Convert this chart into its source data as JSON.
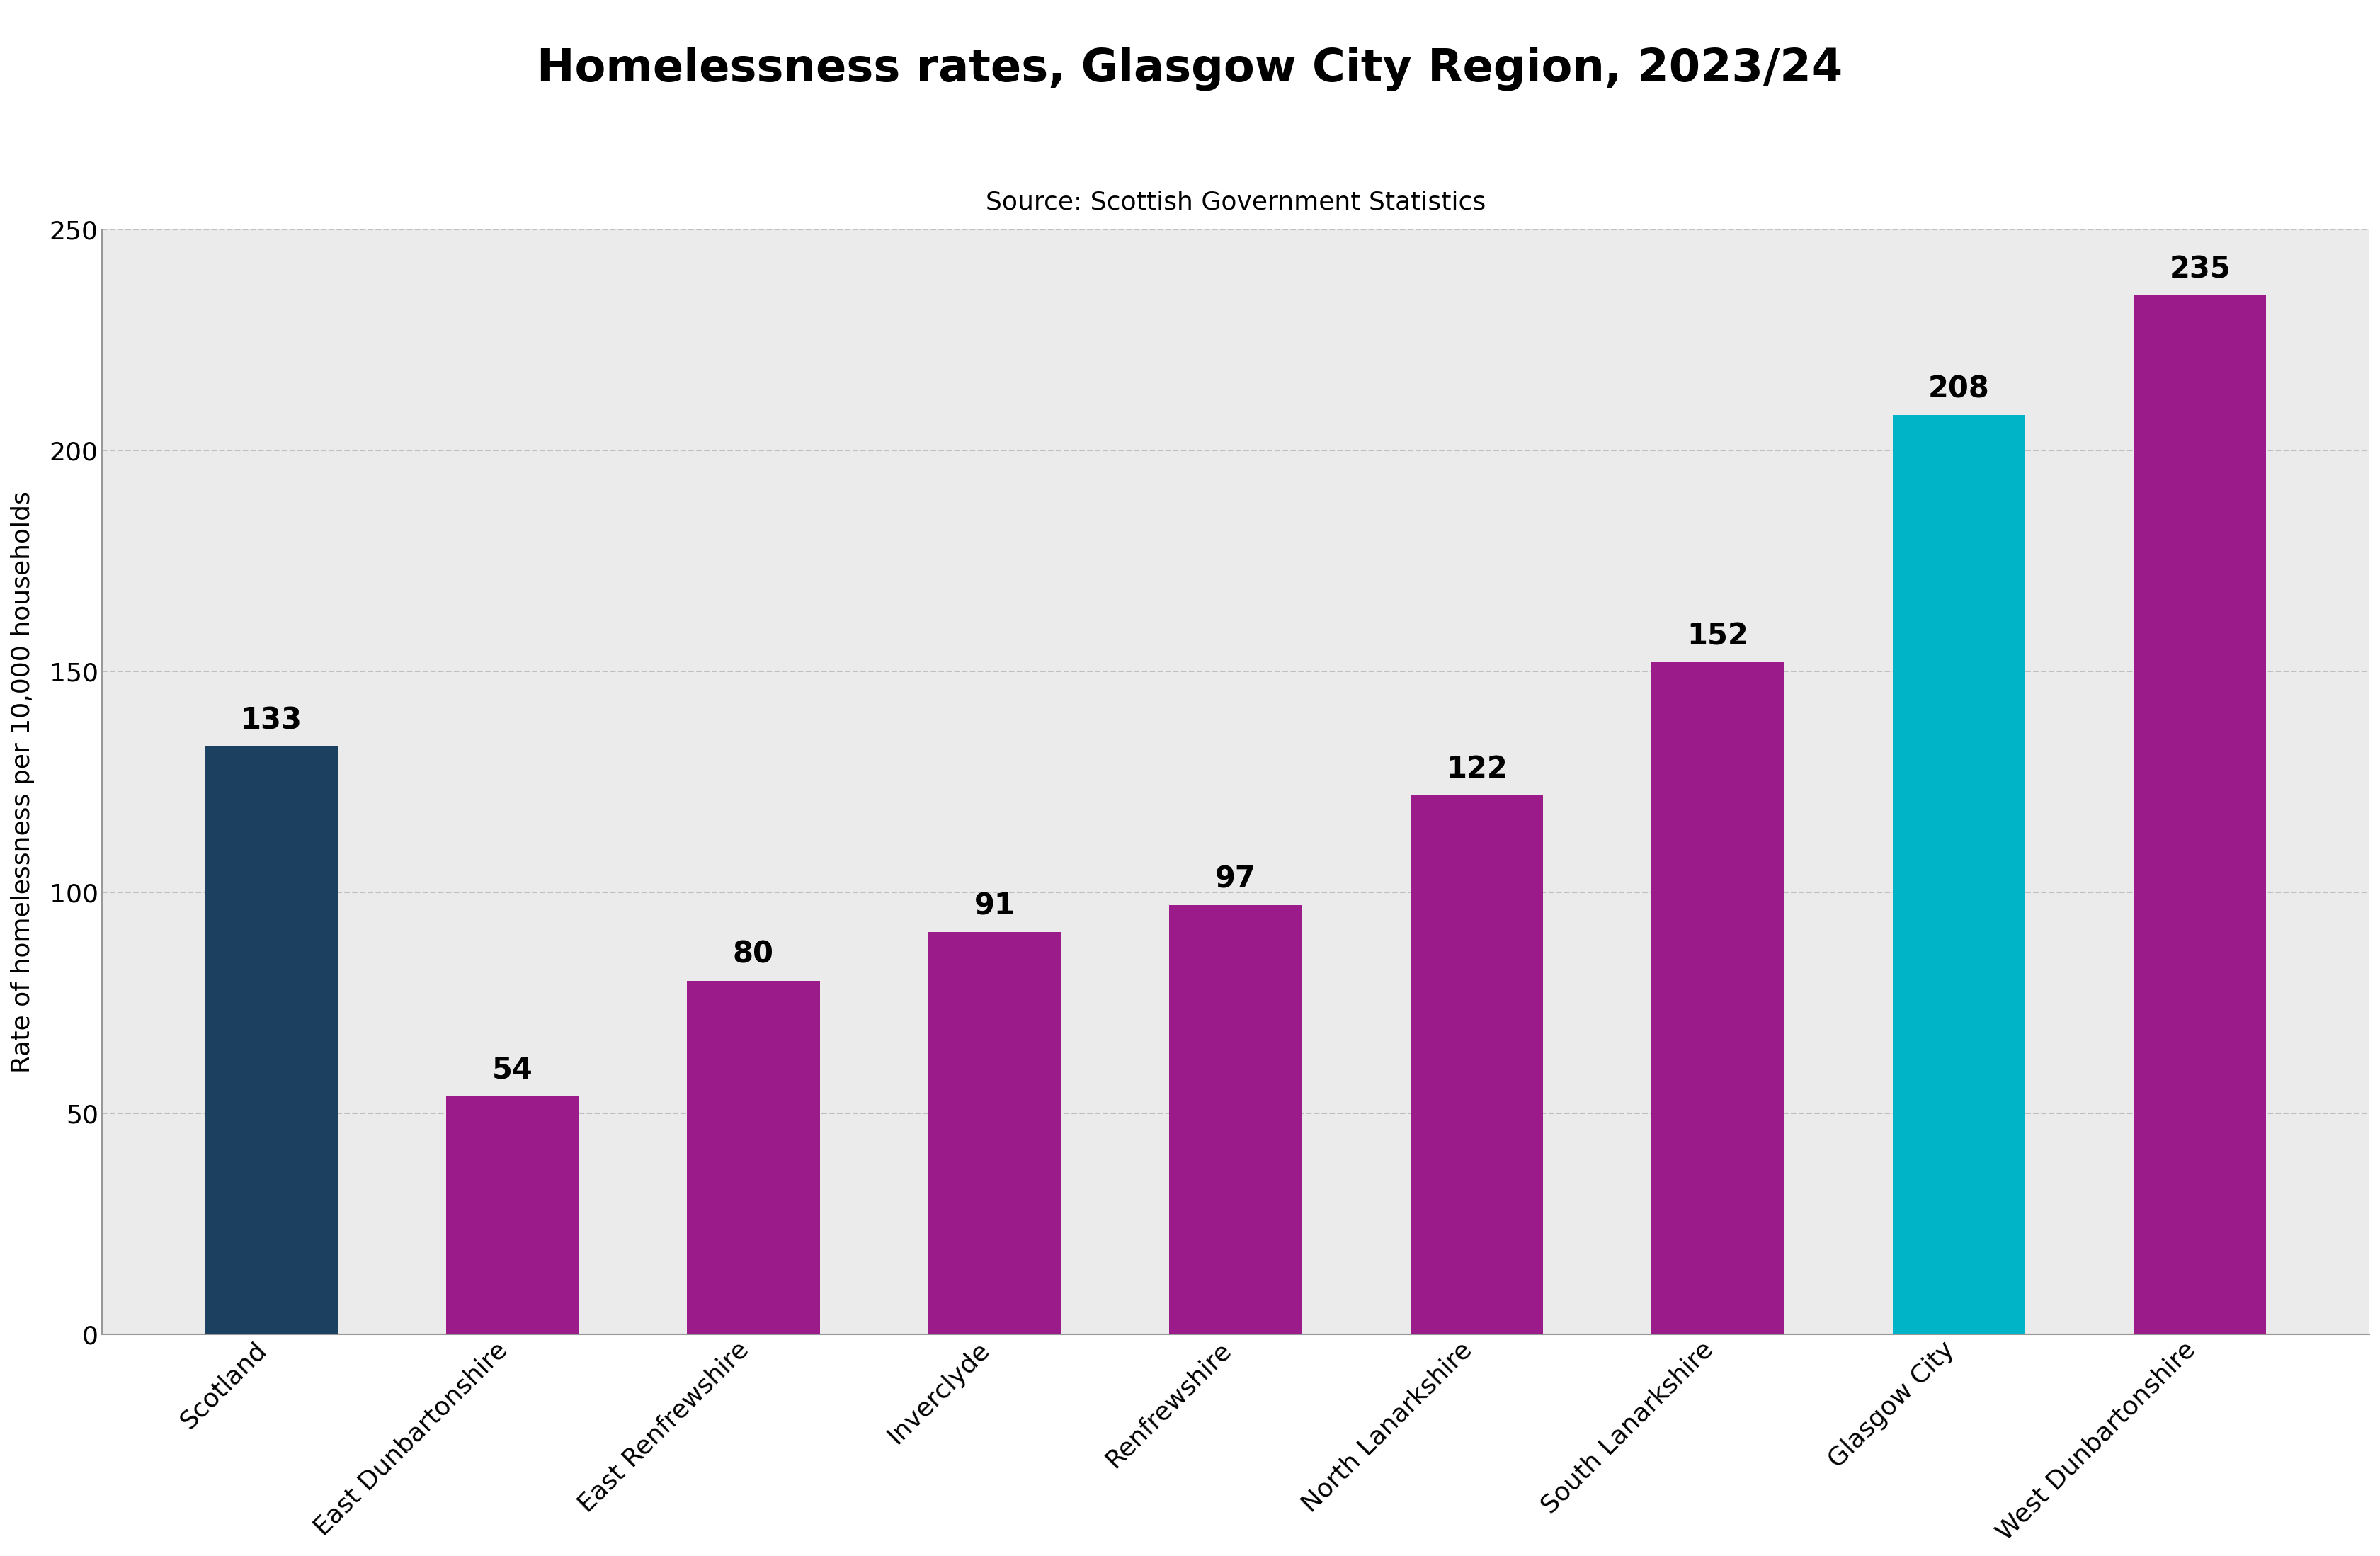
{
  "title": "Homelessness rates, Glasgow City Region, 2023/24",
  "subtitle": "Source: Scottish Government Statistics",
  "ylabel": "Rate of homelessness per 10,000 households",
  "categories": [
    "Scotland",
    "East Dunbartonshire",
    "East Renfrewshire",
    "Inverclyde",
    "Renfrewshire",
    "North Lanarkshire",
    "South Lanarkshire",
    "Glasgow City",
    "West Dunbartonshire"
  ],
  "values": [
    133,
    54,
    80,
    91,
    97,
    122,
    152,
    208,
    235
  ],
  "bar_colors": [
    "#1b4060",
    "#9b1b8a",
    "#9b1b8a",
    "#9b1b8a",
    "#9b1b8a",
    "#9b1b8a",
    "#9b1b8a",
    "#00b4c8",
    "#9b1b8a"
  ],
  "ylim": [
    0,
    250
  ],
  "yticks": [
    0,
    50,
    100,
    150,
    200,
    250
  ],
  "fig_bg_color": "#ffffff",
  "plot_bg_color": "#ebebeb",
  "title_fontsize": 46,
  "subtitle_fontsize": 26,
  "ylabel_fontsize": 26,
  "tick_fontsize": 26,
  "value_label_fontsize": 30,
  "bar_width": 0.55,
  "grid_color": "#c0c0c0",
  "spine_color": "#999999"
}
